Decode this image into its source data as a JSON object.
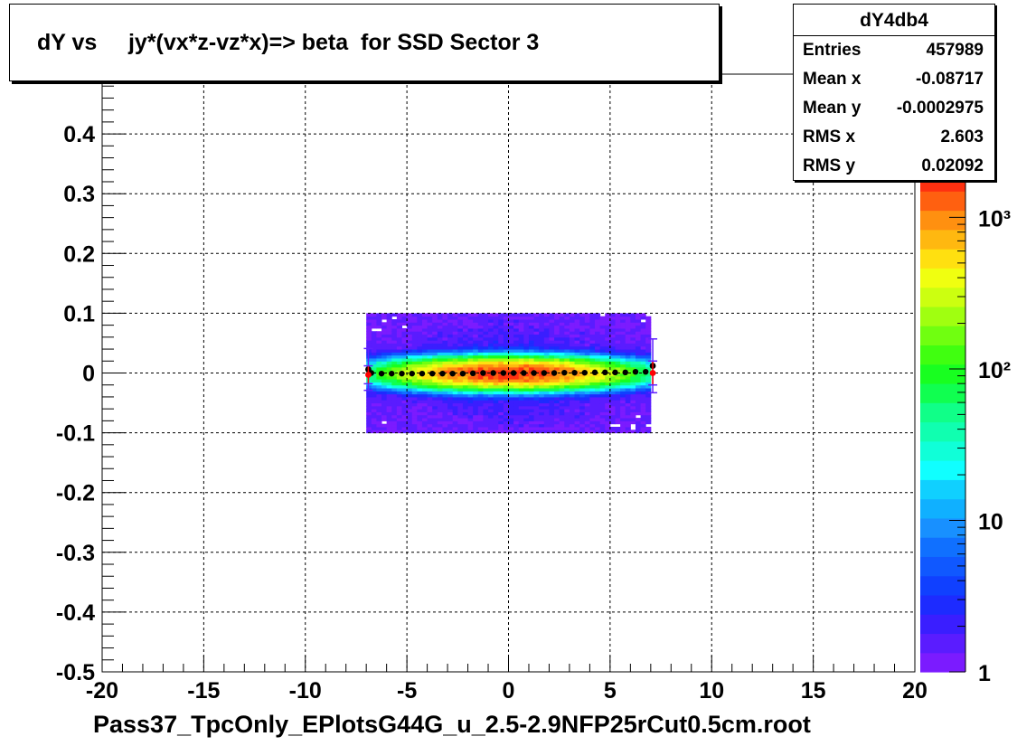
{
  "chart_data": {
    "type": "heatmap",
    "title": "dY vs     jy*(vx*z-vz*x)=> beta  for SSD Sector 3",
    "xlabel": "Pass37_TpcOnly_EPlotsG44G_u_2.5-2.9NFP25rCut0.5cm.root",
    "ylabel": "",
    "xlim": [
      -20,
      20
    ],
    "ylim": [
      -0.5,
      0.5
    ],
    "x_ticks": [
      "-20",
      "-15",
      "-10",
      "-5",
      "0",
      "5",
      "10",
      "15",
      "20"
    ],
    "y_ticks": [
      "-0.5",
      "-0.4",
      "-0.3",
      "-0.2",
      "-0.1",
      "0",
      "0.1",
      "0.2",
      "0.3",
      "0.4",
      "0.5"
    ],
    "grid": true,
    "z_scale": "log",
    "zlim": [
      1,
      2000
    ],
    "z_ticks": [
      {
        "value": 1,
        "label": "1"
      },
      {
        "value": 10,
        "label": "10"
      },
      {
        "value": 100,
        "label": "10²"
      },
      {
        "value": 1000,
        "label": "10³"
      }
    ],
    "histogram_extent": {
      "x": [
        -7,
        7
      ],
      "y": [
        -0.1,
        0.1
      ]
    },
    "profile": {
      "x": [
        -6.75,
        -6.25,
        -5.75,
        -5.25,
        -4.75,
        -4.25,
        -3.75,
        -3.25,
        -2.75,
        -2.25,
        -1.75,
        -1.25,
        -0.75,
        -0.25,
        0.25,
        0.75,
        1.25,
        1.75,
        2.25,
        2.75,
        3.25,
        3.75,
        4.25,
        4.75,
        5.25,
        5.75,
        6.25,
        6.75
      ],
      "mean": [
        0.0,
        -0.001,
        -0.001,
        -0.001,
        -0.001,
        -0.001,
        -0.001,
        -0.001,
        -0.001,
        -0.001,
        -0.0005,
        0,
        0,
        0,
        0,
        0,
        0,
        0,
        0,
        0.0005,
        0.0005,
        0.0005,
        0.001,
        0.001,
        0.001,
        0.001,
        0.002,
        0.002
      ]
    },
    "edge_points": [
      {
        "x": -6.9,
        "y": 0.006,
        "err": 0.035,
        "color": "#000000"
      },
      {
        "x": -6.9,
        "y": -0.003,
        "err": 0.015,
        "color": "#ff0000"
      },
      {
        "x": 7.1,
        "y": 0.012,
        "err": 0.045,
        "color": "#000000"
      },
      {
        "x": 7.1,
        "y": 0.0,
        "err": 0.02,
        "color": "#ff0000"
      }
    ],
    "stats": {
      "name": "dY4db4",
      "rows": [
        {
          "label": "Entries",
          "value": "457989"
        },
        {
          "label": "Mean x",
          "value": "-0.08717"
        },
        {
          "label": "Mean y",
          "value": "-0.0002975"
        },
        {
          "label": "RMS x",
          "value": "2.603"
        },
        {
          "label": "RMS y",
          "value": "0.02092"
        }
      ]
    }
  }
}
